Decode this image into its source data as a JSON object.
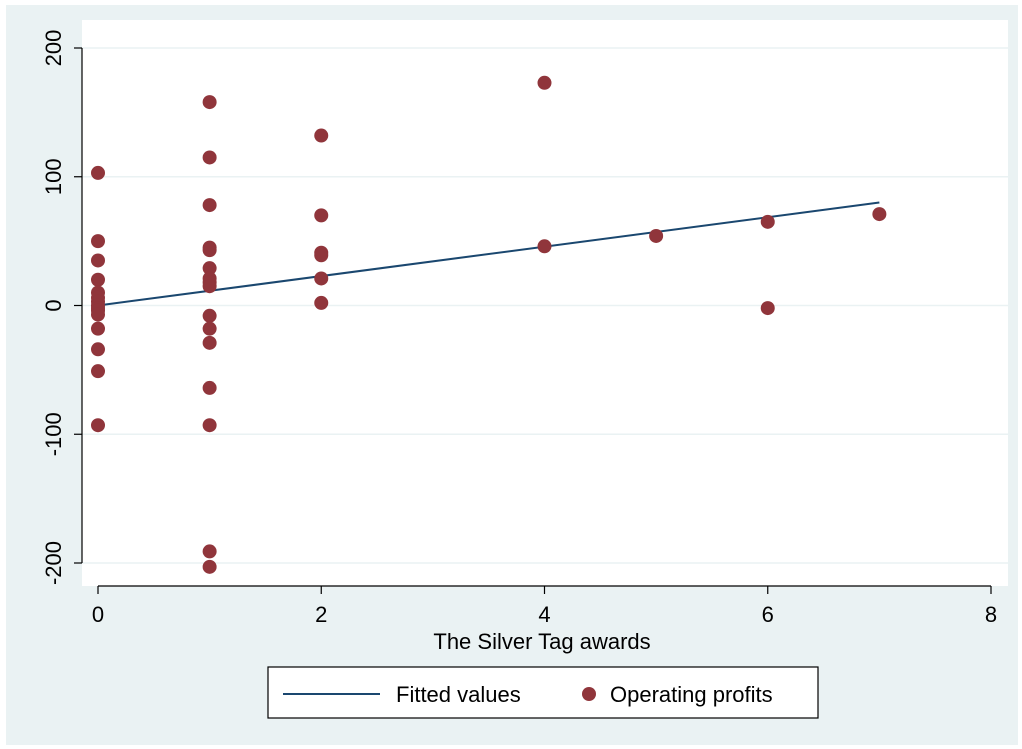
{
  "chart_data": {
    "type": "scatter",
    "title": "",
    "xlabel": "The Silver Tag awards",
    "ylabel": "",
    "xlim": [
      0,
      8
    ],
    "ylim": [
      -200,
      200
    ],
    "x_ticks": [
      0,
      2,
      4,
      6,
      8
    ],
    "y_ticks": [
      -200,
      -100,
      0,
      100,
      200
    ],
    "x_tick_labels": [
      "0",
      "2",
      "4",
      "6",
      "8"
    ],
    "y_tick_labels": [
      "-200",
      "-100",
      "0",
      "100",
      "200"
    ],
    "grid": "horizontal",
    "legend_position": "bottom",
    "series": [
      {
        "name": "Fitted values",
        "kind": "line",
        "color": "#1a476f",
        "points": [
          [
            0,
            0
          ],
          [
            7,
            80
          ]
        ]
      },
      {
        "name": "Operating profits",
        "kind": "scatter",
        "color": "#90353b",
        "points": [
          [
            0,
            103
          ],
          [
            0,
            50
          ],
          [
            0,
            35
          ],
          [
            0,
            20
          ],
          [
            0,
            10
          ],
          [
            0,
            6
          ],
          [
            0,
            3
          ],
          [
            0,
            0
          ],
          [
            0,
            -2
          ],
          [
            0,
            -4
          ],
          [
            0,
            -7
          ],
          [
            0,
            -18
          ],
          [
            0,
            -34
          ],
          [
            0,
            -51
          ],
          [
            0,
            -93
          ],
          [
            1,
            158
          ],
          [
            1,
            115
          ],
          [
            1,
            78
          ],
          [
            1,
            45
          ],
          [
            1,
            43
          ],
          [
            1,
            29
          ],
          [
            1,
            21
          ],
          [
            1,
            18
          ],
          [
            1,
            15
          ],
          [
            1,
            -8
          ],
          [
            1,
            -18
          ],
          [
            1,
            -29
          ],
          [
            1,
            -64
          ],
          [
            1,
            -93
          ],
          [
            1,
            -191
          ],
          [
            1,
            -203
          ],
          [
            2,
            132
          ],
          [
            2,
            70
          ],
          [
            2,
            41
          ],
          [
            2,
            39
          ],
          [
            2,
            21
          ],
          [
            2,
            2
          ],
          [
            4,
            173
          ],
          [
            4,
            46
          ],
          [
            5,
            54
          ],
          [
            6,
            65
          ],
          [
            6,
            -2
          ],
          [
            7,
            71
          ]
        ]
      }
    ]
  },
  "colors": {
    "outer_background": "#eaf2f3",
    "plot_background": "#ffffff",
    "gridline": "#eaf2f3",
    "fitted_line": "#1a476f",
    "marker": "#90353b"
  }
}
